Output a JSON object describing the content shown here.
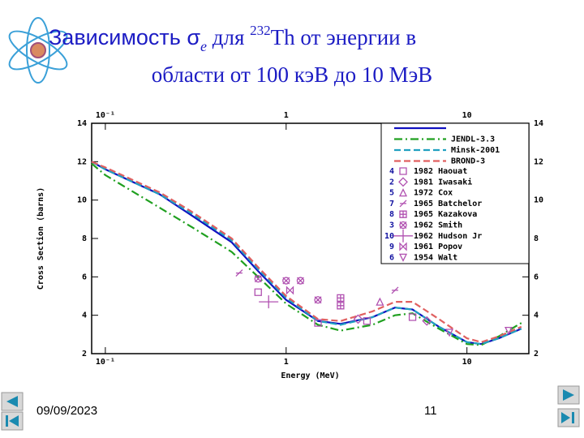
{
  "slide": {
    "title_parts": [
      "Зависимость σ",
      "e",
      " для ",
      "232",
      "Th от энергии в"
    ],
    "title_line2": "области от 100 кэВ до 10 МэВ",
    "date": "09/09/2023",
    "page": "11"
  },
  "chart_data": {
    "type": "line",
    "xlabel": "Energy (MeV)",
    "ylabel": "Cross Section (barns)",
    "xscale": "log",
    "xlim": [
      0.084,
      22
    ],
    "ylim": [
      2,
      14
    ],
    "xticks": [
      {
        "value": 0.1,
        "label": "10⁻¹"
      },
      1,
      10
    ],
    "yticks": [
      2,
      4,
      6,
      8,
      10,
      12,
      14
    ],
    "legend": "upper right",
    "x": [
      0.084,
      0.1,
      0.2,
      0.3,
      0.5,
      0.7,
      1,
      1.5,
      2,
      3,
      4,
      5,
      7,
      10,
      12,
      15,
      20
    ],
    "series": [
      {
        "color": "#1010c0",
        "dash": "solid",
        "values": [
          12,
          11.6,
          10.3,
          9.2,
          7.8,
          6.3,
          4.8,
          3.7,
          3.55,
          3.9,
          4.4,
          4.3,
          3.4,
          2.6,
          2.5,
          2.8,
          3.3
        ]
      },
      {
        "name": "JENDL-3.3",
        "color": "#20a020",
        "dash": "dashdot",
        "values": [
          11.9,
          11.3,
          9.6,
          8.6,
          7.3,
          6.0,
          4.6,
          3.5,
          3.2,
          3.5,
          4.0,
          4.1,
          3.3,
          2.5,
          2.45,
          2.9,
          3.6
        ]
      },
      {
        "name": "Minsk-2001",
        "color": "#20a0c0",
        "dash": "dashed",
        "values": [
          12,
          11.6,
          10.3,
          9.3,
          7.9,
          6.4,
          4.9,
          3.7,
          3.5,
          3.9,
          4.4,
          4.3,
          3.4,
          2.6,
          2.5,
          2.8,
          3.3
        ]
      },
      {
        "name": "BROND-3",
        "color": "#e06060",
        "dash": "dashed",
        "values": [
          12,
          11.7,
          10.4,
          9.4,
          8.0,
          6.5,
          5.0,
          3.8,
          3.7,
          4.2,
          4.7,
          4.7,
          3.8,
          2.8,
          2.6,
          2.9,
          3.4
        ]
      }
    ],
    "experiments": [
      {
        "number": "4",
        "name": "1982 Haouat",
        "marker": "square",
        "color": "#b050b0",
        "x": [
          0.7,
          1.5,
          2.8,
          5
        ],
        "values": [
          5.2,
          3.6,
          3.7,
          3.9
        ]
      },
      {
        "number": "2",
        "name": "1981 Iwasaki",
        "marker": "diamond",
        "color": "#b050b0",
        "x": [
          2.5,
          6
        ],
        "values": [
          3.8,
          3.7
        ]
      },
      {
        "number": "5",
        "name": "1972 Cox",
        "marker": "triangle",
        "color": "#b050b0",
        "x": [
          3.3
        ],
        "values": [
          4.7
        ]
      },
      {
        "number": "7",
        "name": "1965 Batchelor",
        "marker": "slash",
        "color": "#b050b0",
        "x": [
          0.55,
          4
        ],
        "values": [
          6.2,
          5.3
        ]
      },
      {
        "number": "8",
        "name": "1965 Kazakova",
        "marker": "plus",
        "color": "#b050b0",
        "x": [
          2,
          2
        ],
        "values": [
          4.9,
          4.5
        ]
      },
      {
        "number": "3",
        "name": "1962 Smith",
        "marker": "xcircle",
        "color": "#b050b0",
        "x": [
          0.7,
          1,
          1.2,
          1.5
        ],
        "values": [
          5.9,
          5.8,
          5.8,
          4.8
        ]
      },
      {
        "number": "10",
        "name": "1962 Hudson Jr",
        "marker": "cross",
        "color": "#b050b0",
        "x": [
          0.8
        ],
        "values": [
          4.7
        ]
      },
      {
        "number": "9",
        "name": "1961 Popov",
        "marker": "bowtie",
        "color": "#b050b0",
        "x": [
          1.05
        ],
        "values": [
          5.3
        ]
      },
      {
        "number": "6",
        "name": "1954 Walt",
        "marker": "down",
        "color": "#b050b0",
        "x": [
          8,
          17
        ],
        "values": [
          3.1,
          3.2
        ]
      }
    ]
  }
}
